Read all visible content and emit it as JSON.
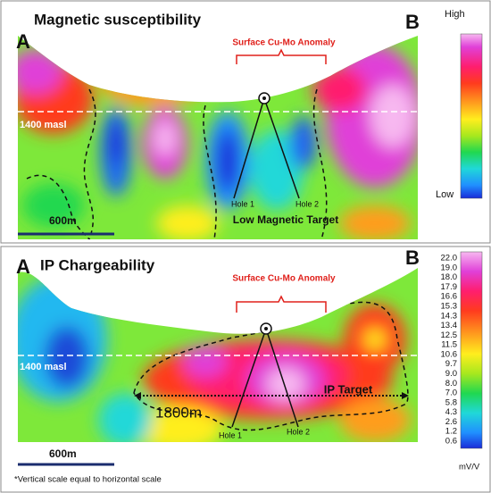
{
  "top_panel": {
    "title": "Magnetic susceptibility",
    "left_label": "A",
    "right_label": "B",
    "anomaly_label": "Surface Cu-Mo Anomaly",
    "elevation_label": "1400 masl",
    "hole_labels": [
      "Hole 1",
      "Hole 2"
    ],
    "target_label": "Low Magnetic Target",
    "scale_label": "600m",
    "colorbar": {
      "top": "High",
      "bottom": "Low"
    }
  },
  "bottom_panel": {
    "title": "IP Chargeability",
    "left_label": "A",
    "right_label": "B",
    "anomaly_label": "Surface Cu-Mo Anomaly",
    "elevation_label": "1400 masl",
    "hole_labels": [
      "Hole 1",
      "Hole 2"
    ],
    "target_label": "IP Target",
    "width_label": "1800m",
    "scale_label": "600m",
    "colorbar": {
      "labels": [
        "22.0",
        "19.0",
        "18.0",
        "17.9",
        "16.6",
        "15.3",
        "14.3",
        "13.4",
        "12.5",
        "11.5",
        "10.6",
        "9.7",
        "9.0",
        "8.0",
        "7.0",
        "5.8",
        "4.3",
        "2.6",
        "1.2",
        "0.6"
      ],
      "unit": "mV/V"
    }
  },
  "footnote": "*Vertical scale equal to horizontal scale"
}
